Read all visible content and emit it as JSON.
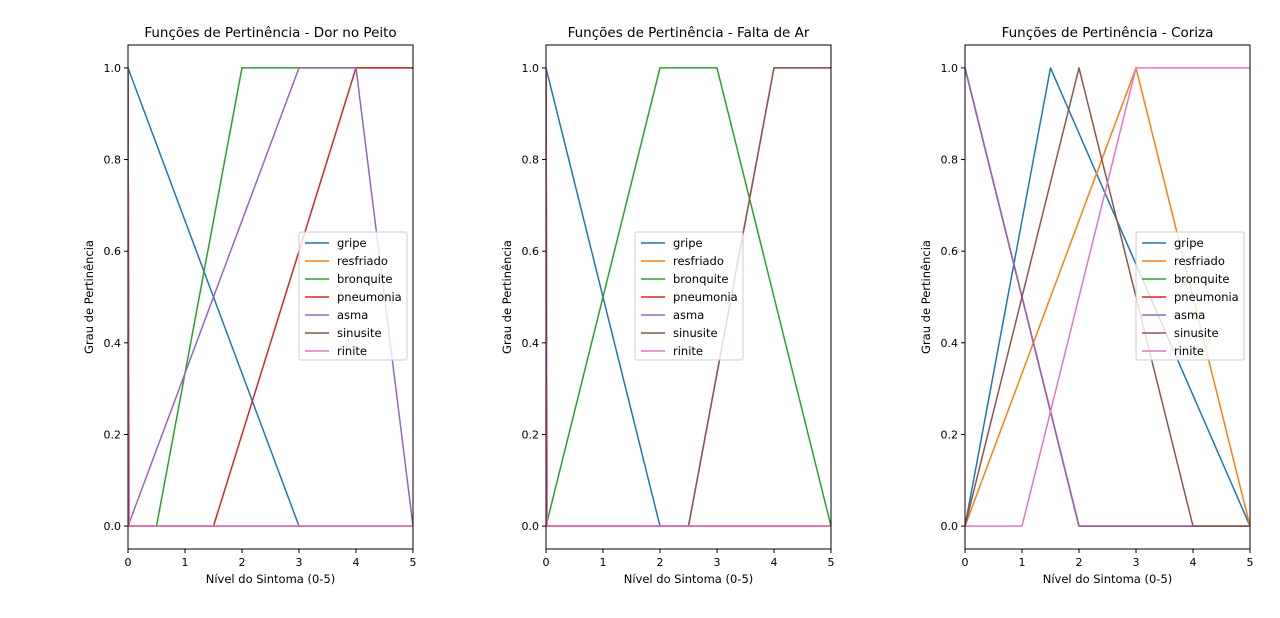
{
  "colors": {
    "gripe": "#1f77b4",
    "resfriado": "#ff7f0e",
    "bronquite": "#2ca02c",
    "pneumonia": "#d62728",
    "asma": "#9467bd",
    "sinusite": "#8c564b",
    "rinite": "#e377c2"
  },
  "chart_data": [
    {
      "type": "line",
      "title": "Funções de Pertinência - Dor no Peito",
      "xlabel": "Nível do Sintoma (0-5)",
      "ylabel": "Grau de Pertinência",
      "xlim": [
        0,
        5
      ],
      "ylim": [
        -0.05,
        1.05
      ],
      "xticks": [
        "0",
        "1",
        "2",
        "3",
        "4",
        "5"
      ],
      "yticks": [
        "0.0",
        "0.2",
        "0.4",
        "0.6",
        "0.8",
        "1.0"
      ],
      "grid": false,
      "legend_position": "center-right",
      "series": [
        {
          "name": "gripe",
          "x": [
            0,
            3,
            5
          ],
          "y": [
            1,
            0,
            0
          ]
        },
        {
          "name": "resfriado",
          "x": [
            0,
            0.02,
            5
          ],
          "y": [
            1,
            0,
            0
          ]
        },
        {
          "name": "bronquite",
          "x": [
            0,
            0.5,
            2,
            3,
            5
          ],
          "y": [
            0,
            0,
            1,
            1,
            1
          ]
        },
        {
          "name": "pneumonia",
          "x": [
            0,
            1.5,
            4,
            5
          ],
          "y": [
            0,
            0,
            1,
            1
          ]
        },
        {
          "name": "asma",
          "x": [
            0,
            3,
            4,
            5
          ],
          "y": [
            0,
            1,
            1,
            0
          ]
        },
        {
          "name": "sinusite",
          "x": [
            0,
            0.02,
            5
          ],
          "y": [
            1,
            0,
            0
          ]
        },
        {
          "name": "rinite",
          "x": [
            0,
            0.02,
            5
          ],
          "y": [
            1,
            0,
            0
          ]
        }
      ]
    },
    {
      "type": "line",
      "title": "Funções de Pertinência - Falta de Ar",
      "xlabel": "Nível do Sintoma (0-5)",
      "ylabel": "Grau de Pertinência",
      "xlim": [
        0,
        5
      ],
      "ylim": [
        -0.05,
        1.05
      ],
      "xticks": [
        "0",
        "1",
        "2",
        "3",
        "4",
        "5"
      ],
      "yticks": [
        "0.0",
        "0.2",
        "0.4",
        "0.6",
        "0.8",
        "1.0"
      ],
      "grid": false,
      "legend_position": "center-right",
      "series": [
        {
          "name": "gripe",
          "x": [
            0,
            2,
            5
          ],
          "y": [
            1,
            0,
            0
          ]
        },
        {
          "name": "resfriado",
          "x": [
            0,
            0.02,
            5
          ],
          "y": [
            1,
            0,
            0
          ]
        },
        {
          "name": "bronquite",
          "x": [
            0,
            2,
            3,
            5
          ],
          "y": [
            0,
            1,
            1,
            0
          ]
        },
        {
          "name": "pneumonia",
          "x": [
            0,
            0.02,
            5
          ],
          "y": [
            1,
            0,
            0
          ]
        },
        {
          "name": "asma",
          "x": [
            0,
            2.5,
            4,
            5
          ],
          "y": [
            0,
            0,
            1,
            1
          ]
        },
        {
          "name": "sinusite",
          "x": [
            0,
            2.5,
            4,
            5
          ],
          "y": [
            0,
            0,
            1,
            1
          ]
        },
        {
          "name": "rinite",
          "x": [
            0,
            0.02,
            5
          ],
          "y": [
            1,
            0,
            0
          ]
        }
      ]
    },
    {
      "type": "line",
      "title": "Funções de Pertinência - Coriza",
      "xlabel": "Nível do Sintoma (0-5)",
      "ylabel": "Grau de Pertinência",
      "xlim": [
        0,
        5
      ],
      "ylim": [
        -0.05,
        1.05
      ],
      "xticks": [
        "0",
        "1",
        "2",
        "3",
        "4",
        "5"
      ],
      "yticks": [
        "0.0",
        "0.2",
        "0.4",
        "0.6",
        "0.8",
        "1.0"
      ],
      "grid": false,
      "legend_position": "center-right",
      "series": [
        {
          "name": "gripe",
          "x": [
            0,
            1.5,
            5
          ],
          "y": [
            0,
            1,
            0
          ]
        },
        {
          "name": "resfriado",
          "x": [
            0,
            3,
            5
          ],
          "y": [
            0,
            1,
            0
          ]
        },
        {
          "name": "bronquite",
          "x": [
            0,
            2,
            5
          ],
          "y": [
            1,
            0,
            0
          ]
        },
        {
          "name": "pneumonia",
          "x": [
            0,
            2,
            5
          ],
          "y": [
            1,
            0,
            0
          ]
        },
        {
          "name": "asma",
          "x": [
            0,
            2,
            5
          ],
          "y": [
            1,
            0,
            0
          ]
        },
        {
          "name": "sinusite",
          "x": [
            0,
            2,
            4,
            5
          ],
          "y": [
            0,
            1,
            0,
            0
          ]
        },
        {
          "name": "rinite",
          "x": [
            0,
            1,
            3,
            5
          ],
          "y": [
            0,
            0,
            1,
            1
          ]
        }
      ]
    }
  ]
}
